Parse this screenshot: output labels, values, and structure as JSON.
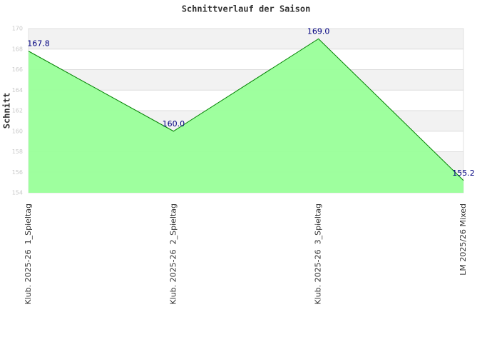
{
  "chart_data": {
    "type": "area",
    "title": "Schnittverlauf der Saison",
    "y_label": "Schnitt",
    "categories": [
      "Klub. 2025-26  1_Spieltag",
      "Klub. 2025-26  2_Spieltag",
      "Klub. 2025-26  3_Spieltag",
      "LM 2025/26 Mixed"
    ],
    "values": [
      167.8,
      160.0,
      169.0,
      155.2
    ],
    "value_labels": [
      "167.8",
      "160.0",
      "169.0",
      "155.2"
    ],
    "color": "#008000",
    "fill": "#99ff99",
    "label_color": "#000080",
    "ylim": [
      154,
      170
    ],
    "yticks": [
      154,
      156,
      158,
      160,
      162,
      164,
      166,
      168,
      170
    ],
    "grid": true
  }
}
